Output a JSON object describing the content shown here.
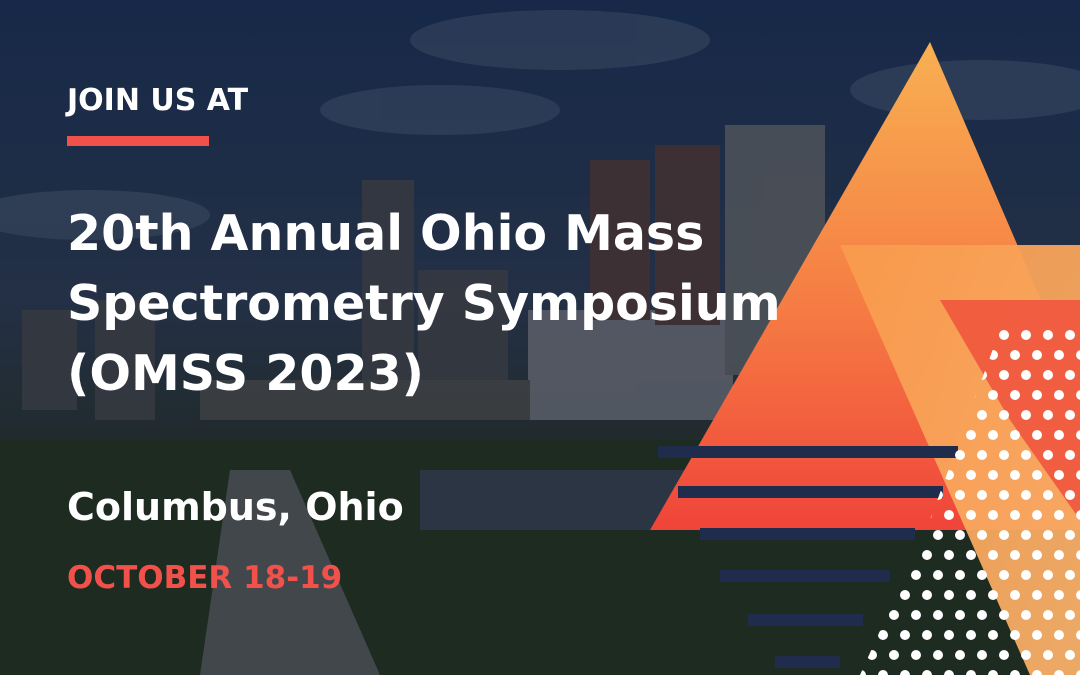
{
  "eyebrow": "JOIN US AT",
  "title_lines": [
    "20th Annual Ohio Mass",
    "Spectrometry Symposium",
    "(OMSS 2023)"
  ],
  "location": "Columbus, Ohio",
  "dates": "OCTOBER 18-19"
}
